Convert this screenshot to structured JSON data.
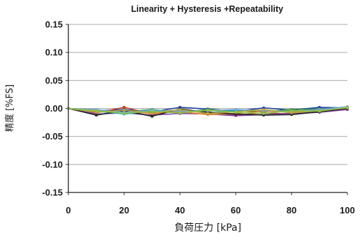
{
  "chart_data": {
    "type": "line",
    "title": "Linearity + Hysteresis +Repeatability",
    "xlabel": "負荷圧力 [kPa]",
    "ylabel": "精度 [%FS]",
    "xlim": [
      0,
      100
    ],
    "ylim": [
      -0.15,
      0.15
    ],
    "x_ticks": [
      "0",
      "20",
      "40",
      "60",
      "80",
      "100"
    ],
    "y_ticks": [
      "0.15",
      "0.10",
      "0.05",
      "0.00",
      "-0.05",
      "-0.10",
      "-0.15"
    ],
    "grid": true,
    "x": [
      0,
      10,
      20,
      30,
      40,
      50,
      60,
      70,
      80,
      90,
      100
    ],
    "series": [
      {
        "color": "#1f3f9f",
        "values": [
          0.0,
          -0.004,
          -0.002,
          -0.006,
          0.002,
          -0.001,
          -0.005,
          0.001,
          -0.003,
          0.002,
          0.001
        ]
      },
      {
        "color": "#c0392b",
        "values": [
          0.0,
          -0.008,
          0.002,
          -0.01,
          -0.004,
          -0.006,
          -0.012,
          -0.008,
          -0.01,
          -0.005,
          0.0
        ]
      },
      {
        "color": "#2e8b3e",
        "values": [
          0.0,
          -0.003,
          -0.006,
          -0.002,
          -0.007,
          -0.002,
          -0.004,
          -0.006,
          -0.002,
          -0.001,
          0.002
        ]
      },
      {
        "color": "#7b3fa0",
        "values": [
          0.0,
          -0.01,
          -0.008,
          -0.012,
          -0.009,
          -0.01,
          -0.013,
          -0.011,
          -0.009,
          -0.007,
          -0.002
        ]
      },
      {
        "color": "#19a3c4",
        "values": [
          0.0,
          -0.005,
          -0.01,
          -0.006,
          -0.003,
          -0.008,
          -0.004,
          -0.003,
          -0.007,
          -0.003,
          0.003
        ]
      },
      {
        "color": "#e67e22",
        "values": [
          0.0,
          -0.006,
          -0.005,
          -0.009,
          -0.006,
          -0.011,
          -0.009,
          -0.005,
          -0.006,
          -0.004,
          0.001
        ]
      },
      {
        "color": "#222222",
        "values": [
          0.0,
          -0.012,
          -0.004,
          -0.014,
          -0.001,
          -0.007,
          -0.01,
          -0.012,
          -0.011,
          -0.006,
          0.0
        ]
      },
      {
        "color": "#6fa8dc",
        "values": [
          0.0,
          -0.002,
          -0.007,
          -0.003,
          -0.005,
          -0.004,
          -0.002,
          -0.004,
          -0.005,
          -0.002,
          0.003
        ]
      },
      {
        "color": "#b5a642",
        "values": [
          0.0,
          -0.007,
          -0.003,
          -0.008,
          -0.002,
          -0.009,
          -0.006,
          -0.002,
          -0.008,
          -0.004,
          0.001
        ]
      },
      {
        "color": "#8bc34a",
        "values": [
          0.0,
          -0.004,
          -0.009,
          -0.005,
          -0.008,
          -0.003,
          -0.007,
          -0.009,
          -0.004,
          -0.005,
          0.002
        ]
      }
    ]
  }
}
